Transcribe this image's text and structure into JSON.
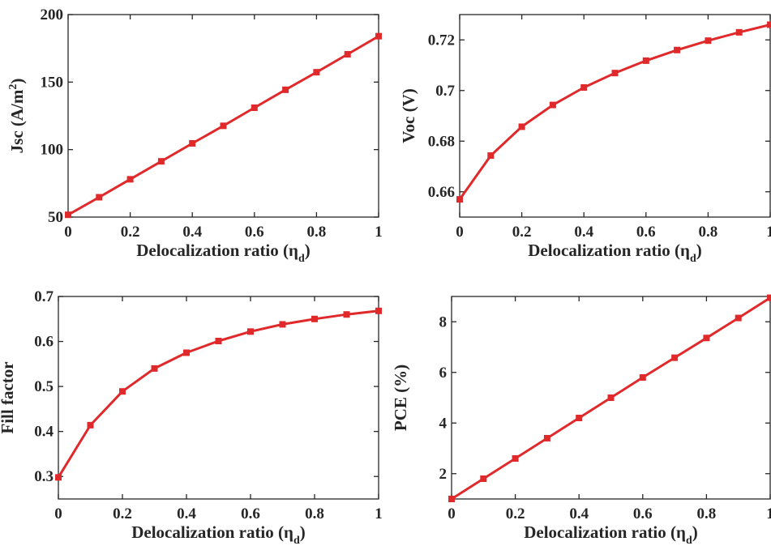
{
  "chart_data": [
    {
      "type": "line",
      "x": [
        0,
        0.1,
        0.2,
        0.3,
        0.4,
        0.5,
        0.6,
        0.7,
        0.8,
        0.9,
        1.0
      ],
      "series": [
        {
          "values": [
            51.7,
            64.7,
            78.0,
            91.3,
            104.6,
            117.6,
            131.0,
            144.3,
            157.3,
            170.6,
            184.0
          ]
        }
      ],
      "xlabel": {
        "text": "Delocalization ratio (η",
        "sub": "d",
        "suffix": ")"
      },
      "ylabel": {
        "text": "Jsc (A/m",
        "sup": "2",
        "suffix": ")"
      },
      "xlim": [
        0,
        1
      ],
      "ylim": [
        50,
        200
      ],
      "xticks": [
        0,
        0.2,
        0.4,
        0.6,
        0.8,
        1
      ],
      "xtick_labels": [
        "0",
        "0.2",
        "0.4",
        "0.6",
        "0.8",
        "1"
      ],
      "yticks": [
        50,
        100,
        150,
        200
      ],
      "ytick_labels": [
        "50",
        "100",
        "150",
        "200"
      ],
      "grid": false,
      "marker": "square",
      "color": "#e0292b"
    },
    {
      "type": "line",
      "x": [
        0,
        0.1,
        0.2,
        0.3,
        0.4,
        0.5,
        0.6,
        0.7,
        0.8,
        0.9,
        1.0
      ],
      "series": [
        {
          "values": [
            0.657,
            0.6743,
            0.6857,
            0.6943,
            0.7012,
            0.7069,
            0.7118,
            0.716,
            0.7197,
            0.723,
            0.726
          ]
        }
      ],
      "xlabel": {
        "text": "Delocalization ratio (η",
        "sub": "d",
        "suffix": ")"
      },
      "ylabel": {
        "text": "Voc (V)"
      },
      "xlim": [
        0,
        1
      ],
      "ylim": [
        0.65,
        0.73
      ],
      "xticks": [
        0,
        0.2,
        0.4,
        0.6,
        0.8,
        1
      ],
      "xtick_labels": [
        "0",
        "0.2",
        "0.4",
        "0.6",
        "0.8",
        "1"
      ],
      "yticks": [
        0.66,
        0.68,
        0.7,
        0.72
      ],
      "ytick_labels": [
        "0.66",
        "0.68",
        "0.7",
        "0.72"
      ],
      "grid": false,
      "marker": "square",
      "color": "#e0292b"
    },
    {
      "type": "line",
      "x": [
        0,
        0.1,
        0.2,
        0.3,
        0.4,
        0.5,
        0.6,
        0.7,
        0.8,
        0.9,
        1.0
      ],
      "series": [
        {
          "values": [
            0.298,
            0.414,
            0.489,
            0.54,
            0.575,
            0.601,
            0.622,
            0.638,
            0.65,
            0.66,
            0.668
          ]
        }
      ],
      "xlabel": {
        "text": "Delocalization ratio (η",
        "sub": "d",
        "suffix": ")"
      },
      "ylabel": {
        "text": "Fill factor"
      },
      "xlim": [
        0,
        1
      ],
      "ylim": [
        0.25,
        0.7
      ],
      "xticks": [
        0,
        0.2,
        0.4,
        0.6,
        0.8,
        1
      ],
      "xtick_labels": [
        "0",
        "0.2",
        "0.4",
        "0.6",
        "0.8",
        "1"
      ],
      "yticks": [
        0.3,
        0.4,
        0.5,
        0.6,
        0.7
      ],
      "ytick_labels": [
        "0.3",
        "0.4",
        "0.5",
        "0.6",
        "0.7"
      ],
      "grid": false,
      "marker": "square",
      "color": "#e0292b"
    },
    {
      "type": "line",
      "x": [
        0,
        0.1,
        0.2,
        0.3,
        0.4,
        0.5,
        0.6,
        0.7,
        0.8,
        0.9,
        1.0
      ],
      "series": [
        {
          "values": [
            1.0,
            1.8,
            2.6,
            3.4,
            4.2,
            5.0,
            5.8,
            6.58,
            7.36,
            8.15,
            8.95
          ]
        }
      ],
      "xlabel": {
        "text": "Delocalization ratio (η",
        "sub": "d",
        "suffix": ")"
      },
      "ylabel": {
        "text": "PCE (%)"
      },
      "xlim": [
        0,
        1
      ],
      "ylim": [
        1,
        9
      ],
      "xticks": [
        0,
        0.2,
        0.4,
        0.6,
        0.8,
        1
      ],
      "xtick_labels": [
        "0",
        "0.2",
        "0.4",
        "0.6",
        "0.8",
        "1"
      ],
      "yticks": [
        2,
        4,
        6,
        8
      ],
      "ytick_labels": [
        "2",
        "4",
        "6",
        "8"
      ],
      "grid": false,
      "marker": "square",
      "color": "#e0292b"
    }
  ]
}
